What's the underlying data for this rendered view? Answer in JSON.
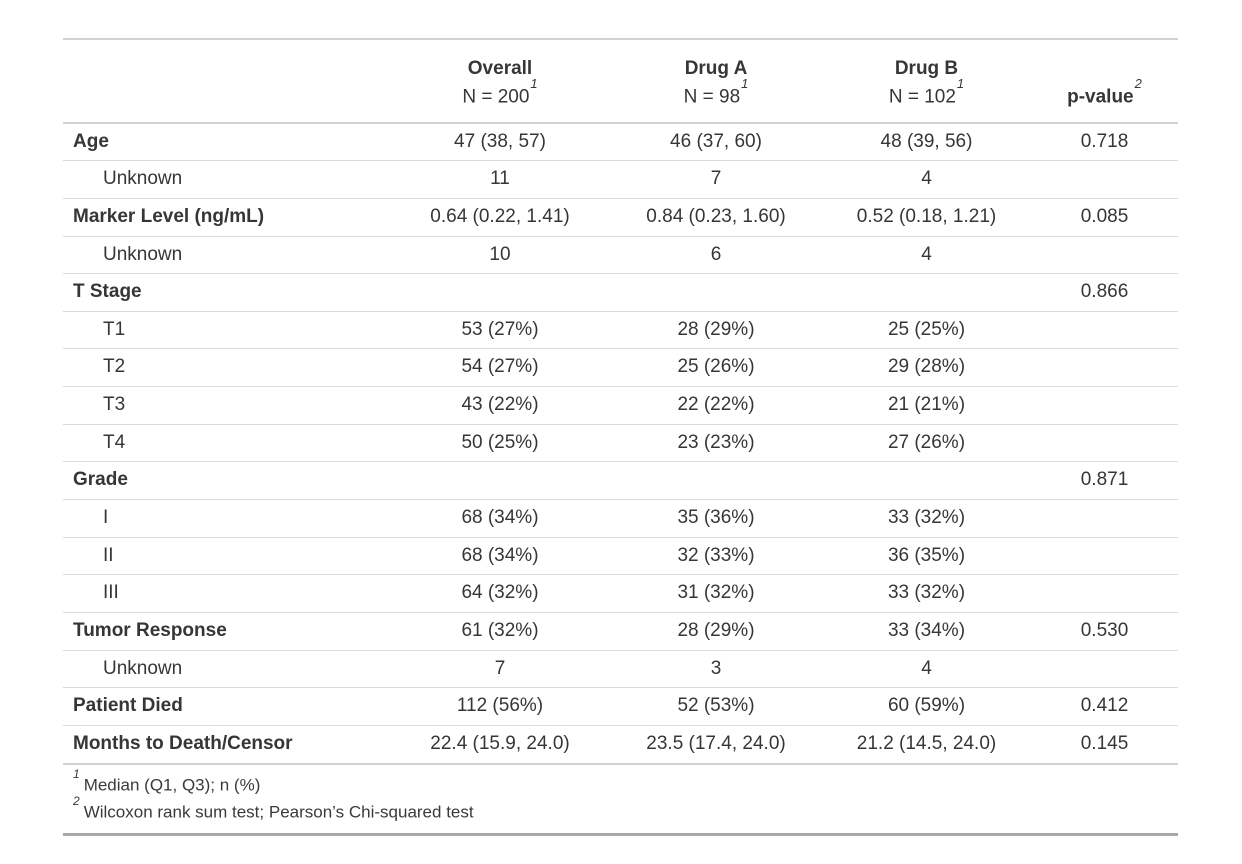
{
  "table": {
    "columns": [
      {
        "label": "",
        "sub": "",
        "sup": ""
      },
      {
        "label": "Overall",
        "sub": "N = 200",
        "sup": "1"
      },
      {
        "label": "Drug A",
        "sub": "N = 98",
        "sup": "1"
      },
      {
        "label": "Drug B",
        "sub": "N = 102",
        "sup": "1"
      },
      {
        "label": "p-value",
        "sub": "",
        "sup": "2"
      }
    ],
    "rows": [
      {
        "label": "Age",
        "bold": true,
        "indent": false,
        "overall": "47 (38, 57)",
        "drug_a": "46 (37, 60)",
        "drug_b": "48 (39, 56)",
        "p_value": "0.718"
      },
      {
        "label": "Unknown",
        "bold": false,
        "indent": true,
        "overall": "11",
        "drug_a": "7",
        "drug_b": "4",
        "p_value": ""
      },
      {
        "label": "Marker Level (ng/mL)",
        "bold": true,
        "indent": false,
        "overall": "0.64 (0.22, 1.41)",
        "drug_a": "0.84 (0.23, 1.60)",
        "drug_b": "0.52 (0.18, 1.21)",
        "p_value": "0.085"
      },
      {
        "label": "Unknown",
        "bold": false,
        "indent": true,
        "overall": "10",
        "drug_a": "6",
        "drug_b": "4",
        "p_value": ""
      },
      {
        "label": "T Stage",
        "bold": true,
        "indent": false,
        "overall": "",
        "drug_a": "",
        "drug_b": "",
        "p_value": "0.866"
      },
      {
        "label": "T1",
        "bold": false,
        "indent": true,
        "overall": "53 (27%)",
        "drug_a": "28 (29%)",
        "drug_b": "25 (25%)",
        "p_value": ""
      },
      {
        "label": "T2",
        "bold": false,
        "indent": true,
        "overall": "54 (27%)",
        "drug_a": "25 (26%)",
        "drug_b": "29 (28%)",
        "p_value": ""
      },
      {
        "label": "T3",
        "bold": false,
        "indent": true,
        "overall": "43 (22%)",
        "drug_a": "22 (22%)",
        "drug_b": "21 (21%)",
        "p_value": ""
      },
      {
        "label": "T4",
        "bold": false,
        "indent": true,
        "overall": "50 (25%)",
        "drug_a": "23 (23%)",
        "drug_b": "27 (26%)",
        "p_value": ""
      },
      {
        "label": "Grade",
        "bold": true,
        "indent": false,
        "overall": "",
        "drug_a": "",
        "drug_b": "",
        "p_value": "0.871"
      },
      {
        "label": "I",
        "bold": false,
        "indent": true,
        "overall": "68 (34%)",
        "drug_a": "35 (36%)",
        "drug_b": "33 (32%)",
        "p_value": ""
      },
      {
        "label": "II",
        "bold": false,
        "indent": true,
        "overall": "68 (34%)",
        "drug_a": "32 (33%)",
        "drug_b": "36 (35%)",
        "p_value": ""
      },
      {
        "label": "III",
        "bold": false,
        "indent": true,
        "overall": "64 (32%)",
        "drug_a": "31 (32%)",
        "drug_b": "33 (32%)",
        "p_value": ""
      },
      {
        "label": "Tumor Response",
        "bold": true,
        "indent": false,
        "overall": "61 (32%)",
        "drug_a": "28 (29%)",
        "drug_b": "33 (34%)",
        "p_value": "0.530"
      },
      {
        "label": "Unknown",
        "bold": false,
        "indent": true,
        "overall": "7",
        "drug_a": "3",
        "drug_b": "4",
        "p_value": ""
      },
      {
        "label": "Patient Died",
        "bold": true,
        "indent": false,
        "overall": "112 (56%)",
        "drug_a": "52 (53%)",
        "drug_b": "60 (59%)",
        "p_value": "0.412"
      },
      {
        "label": "Months to Death/Censor",
        "bold": true,
        "indent": false,
        "overall": "22.4 (15.9, 24.0)",
        "drug_a": "23.5 (17.4, 24.0)",
        "drug_b": "21.2 (14.5, 24.0)",
        "p_value": "0.145"
      }
    ],
    "footnotes": [
      {
        "marker": "1",
        "text": "Median (Q1, Q3); n (%)"
      },
      {
        "marker": "2",
        "text": "Wilcoxon rank sum test; Pearson’s Chi-squared test"
      }
    ]
  }
}
